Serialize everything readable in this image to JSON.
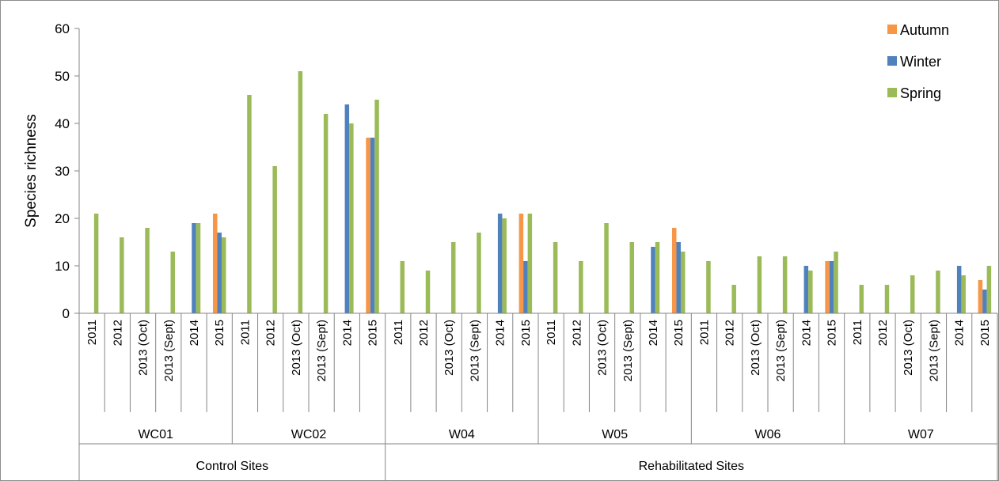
{
  "chart_data": {
    "type": "bar",
    "title": "",
    "xlabel": "",
    "ylabel": "Species richness",
    "ylim": [
      0,
      60
    ],
    "yticks": [
      0,
      10,
      20,
      30,
      40,
      50,
      60
    ],
    "grid": false,
    "legend_position": "top-right",
    "groups": [
      {
        "name": "Control Sites",
        "sites": [
          "WC01",
          "WC02"
        ]
      },
      {
        "name": "Rehabilitated Sites",
        "sites": [
          "W04",
          "W05",
          "W06",
          "W07"
        ]
      }
    ],
    "sites": [
      "WC01",
      "WC02",
      "W04",
      "W05",
      "W06",
      "W07"
    ],
    "periods": [
      "2011",
      "2012",
      "2013 (Oct)",
      "2013 (Sept)",
      "2014",
      "2015"
    ],
    "series": [
      {
        "name": "Autumn",
        "color": "#f79646",
        "values": [
          [
            null,
            null,
            null,
            null,
            null,
            21
          ],
          [
            null,
            null,
            null,
            null,
            null,
            37
          ],
          [
            null,
            null,
            null,
            null,
            null,
            21
          ],
          [
            null,
            null,
            null,
            null,
            null,
            18
          ],
          [
            null,
            null,
            null,
            null,
            null,
            11
          ],
          [
            null,
            null,
            null,
            null,
            null,
            7
          ]
        ]
      },
      {
        "name": "Winter",
        "color": "#4f81bd",
        "values": [
          [
            null,
            null,
            null,
            null,
            19,
            17
          ],
          [
            null,
            null,
            null,
            null,
            44,
            37
          ],
          [
            null,
            null,
            null,
            null,
            21,
            11
          ],
          [
            null,
            null,
            null,
            null,
            14,
            15
          ],
          [
            null,
            null,
            null,
            null,
            10,
            11
          ],
          [
            null,
            null,
            null,
            null,
            10,
            5
          ]
        ]
      },
      {
        "name": "Spring",
        "color": "#9bbb59",
        "values": [
          [
            21,
            16,
            18,
            13,
            19,
            16
          ],
          [
            46,
            31,
            51,
            42,
            40,
            45
          ],
          [
            11,
            9,
            15,
            17,
            20,
            21
          ],
          [
            15,
            11,
            19,
            15,
            15,
            13
          ],
          [
            11,
            6,
            12,
            12,
            9,
            13
          ],
          [
            6,
            6,
            8,
            9,
            8,
            10
          ]
        ]
      }
    ]
  }
}
